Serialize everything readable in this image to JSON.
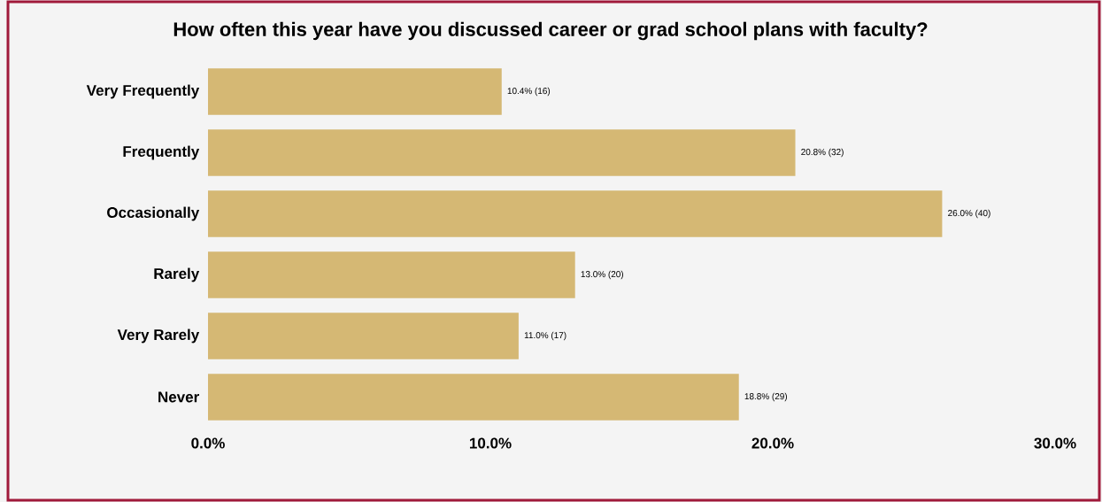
{
  "chart_data": {
    "type": "bar",
    "orientation": "horizontal",
    "title": "How often this year have you discussed career or grad school plans with faculty?",
    "categories": [
      "Very Frequently",
      "Frequently",
      "Occasionally",
      "Rarely",
      "Very Rarely",
      "Never"
    ],
    "values": [
      10.4,
      20.8,
      26.0,
      13.0,
      11.0,
      18.8
    ],
    "value_labels": [
      "10.4% (16)",
      "20.8% (32)",
      "26.0% (40)",
      "13.0% (20)",
      "11.0% (17)",
      "18.8% (29)"
    ],
    "color": "#d5b874",
    "xlim": [
      0,
      30
    ],
    "xticks": [
      {
        "value": 0,
        "label": "0.0%"
      },
      {
        "value": 10,
        "label": "10.0%"
      },
      {
        "value": 20,
        "label": "20.0%"
      },
      {
        "value": 30,
        "label": "30.0%"
      }
    ]
  }
}
